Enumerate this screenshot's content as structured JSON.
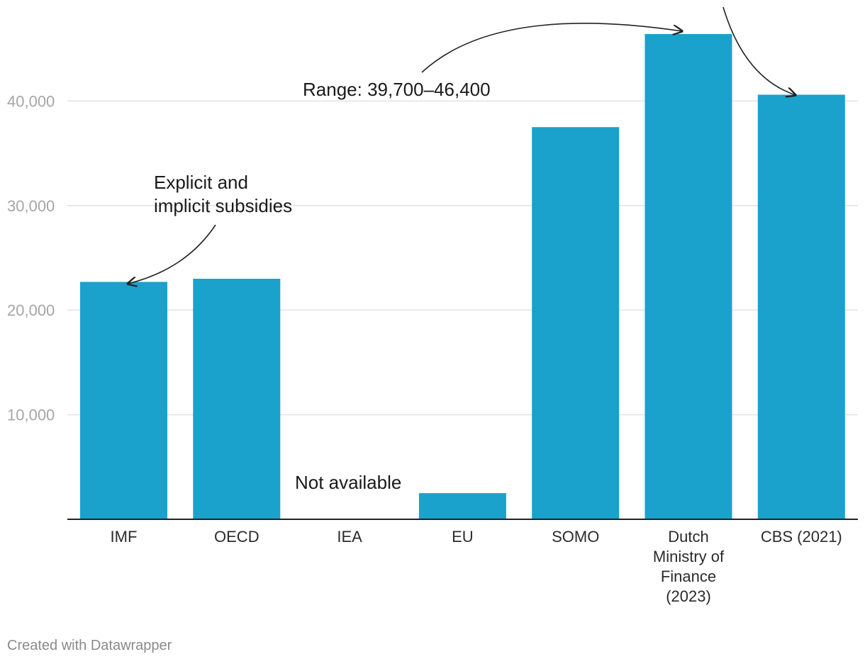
{
  "chart_data": {
    "type": "bar",
    "categories": [
      [
        "IMF"
      ],
      [
        "OECD"
      ],
      [
        "IEA"
      ],
      [
        "EU"
      ],
      [
        "SOMO"
      ],
      [
        "Dutch",
        "Ministry of",
        "Finance",
        "(2023)"
      ],
      [
        "CBS (2021)"
      ]
    ],
    "values": [
      22700,
      23000,
      null,
      2500,
      37500,
      46400,
      40600
    ],
    "ylim": [
      0,
      46400
    ],
    "yticks": [
      10000,
      20000,
      30000,
      40000
    ],
    "ytick_labels": [
      "10,000",
      "20,000",
      "30,000",
      "40,000"
    ],
    "grid": true,
    "bar_color": "#1aa1cc",
    "annotations": [
      {
        "id": "imf-note",
        "lines": [
          "Explicit and",
          "implicit subsidies"
        ]
      },
      {
        "id": "iea-note",
        "lines": [
          "Not available"
        ]
      },
      {
        "id": "range-note",
        "lines": [
          "Range: 39,700–46,400"
        ]
      }
    ]
  },
  "credit": "Created with Datawrapper"
}
